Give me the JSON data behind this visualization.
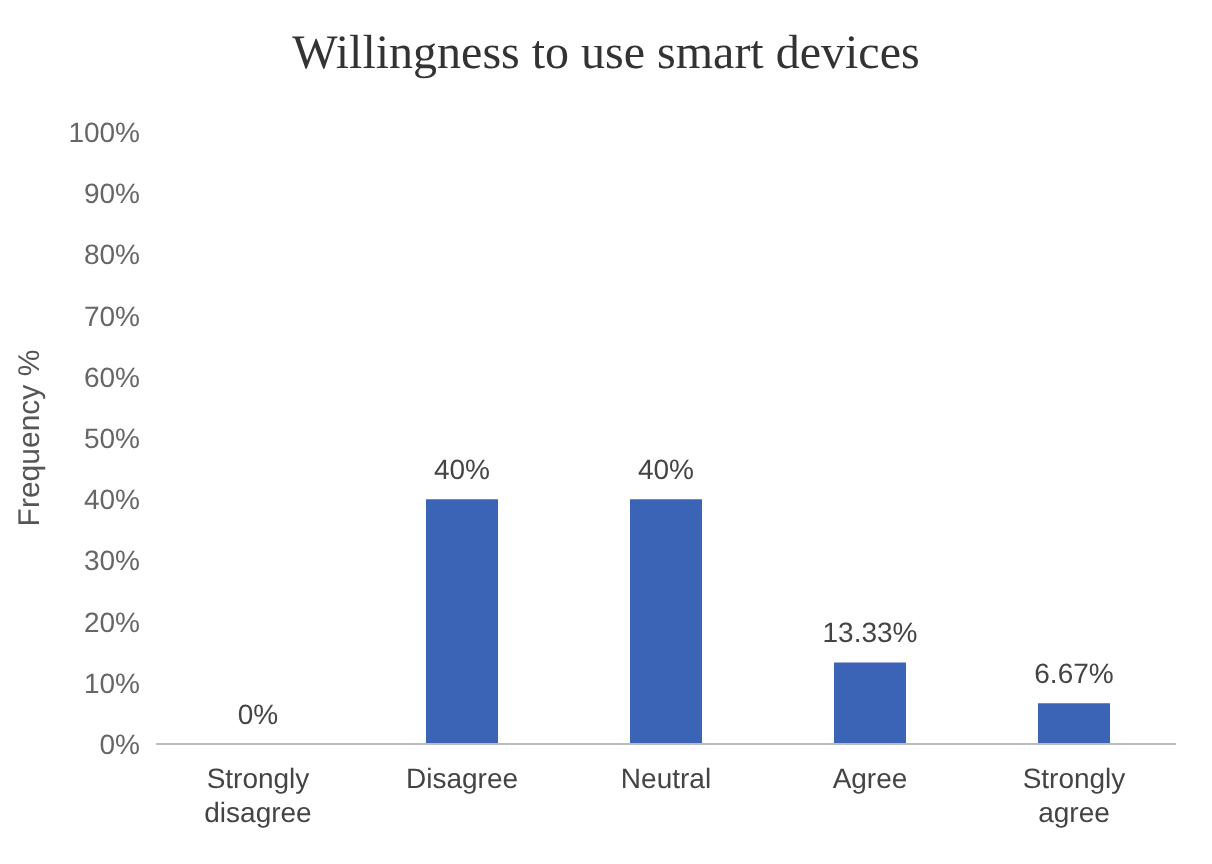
{
  "chart_data": {
    "type": "bar",
    "title": "Willingness to use smart devices",
    "ylabel": "Frequency %",
    "categories": [
      "Strongly disagree",
      "Disagree",
      "Neutral",
      "Agree",
      "Strongly agree"
    ],
    "values": [
      0,
      40,
      40,
      13.33,
      6.67
    ],
    "value_labels": [
      "0%",
      "40%",
      "40%",
      "13.33%",
      "6.67%"
    ],
    "color": "#3b63b6",
    "ylim": [
      0,
      100
    ],
    "yticks": [
      {
        "value": 0,
        "label": "0%"
      },
      {
        "value": 10,
        "label": "10%"
      },
      {
        "value": 20,
        "label": "20%"
      },
      {
        "value": 30,
        "label": "30%"
      },
      {
        "value": 40,
        "label": "40%"
      },
      {
        "value": 50,
        "label": "50%"
      },
      {
        "value": 60,
        "label": "60%"
      },
      {
        "value": 70,
        "label": "70%"
      },
      {
        "value": 80,
        "label": "80%"
      },
      {
        "value": 90,
        "label": "90%"
      },
      {
        "value": 100,
        "label": "100%"
      }
    ],
    "grid": false,
    "legend": false
  }
}
